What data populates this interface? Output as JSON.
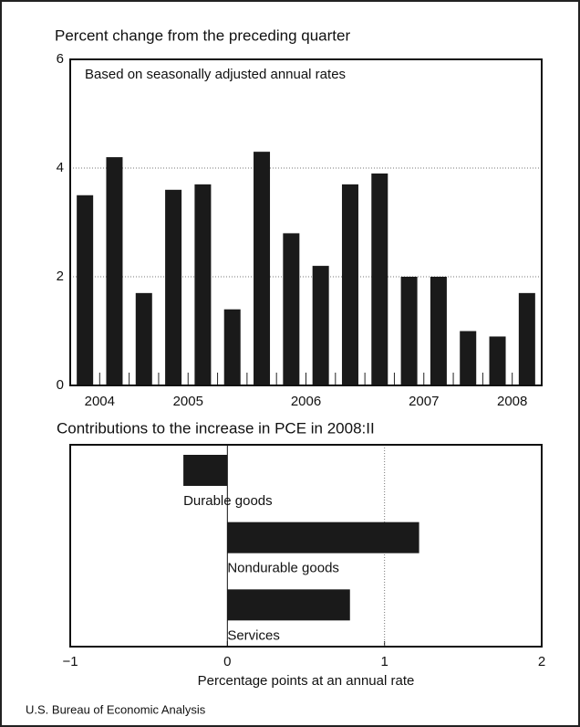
{
  "charts": [
    {
      "type": "bar",
      "title": "Percent change from the preceding quarter",
      "subtitle": "Based on seasonally adjusted annual rates",
      "categories": [
        "2004",
        "2004",
        "2005",
        "2005",
        "2005",
        "2005",
        "2006",
        "2006",
        "2006",
        "2006",
        "2007",
        "2007",
        "2007",
        "2007",
        "2008",
        "2008"
      ],
      "values": [
        3.5,
        4.2,
        1.7,
        3.6,
        3.7,
        1.4,
        4.3,
        2.8,
        2.2,
        3.7,
        3.9,
        2.0,
        2.0,
        1.0,
        0.9,
        1.7
      ],
      "color": "#1a1a1a",
      "ylim": [
        0,
        6
      ],
      "yticks": [
        0,
        2,
        4,
        6
      ],
      "grid": true
    },
    {
      "type": "hbar",
      "title": "Contributions to the increase in PCE in 2008:II",
      "categories": [
        "Durable goods",
        "Nondurable goods",
        "Services"
      ],
      "values": [
        -0.28,
        1.22,
        0.78
      ],
      "color": "#1a1a1a",
      "xlim": [
        -1,
        2
      ],
      "xticks": [
        {
          "value": -1,
          "label": "−1"
        },
        0,
        1,
        2
      ],
      "xlabel": "Percentage points at an annual rate",
      "grid": true
    }
  ],
  "source": "U.S. Bureau of Economic Analysis"
}
